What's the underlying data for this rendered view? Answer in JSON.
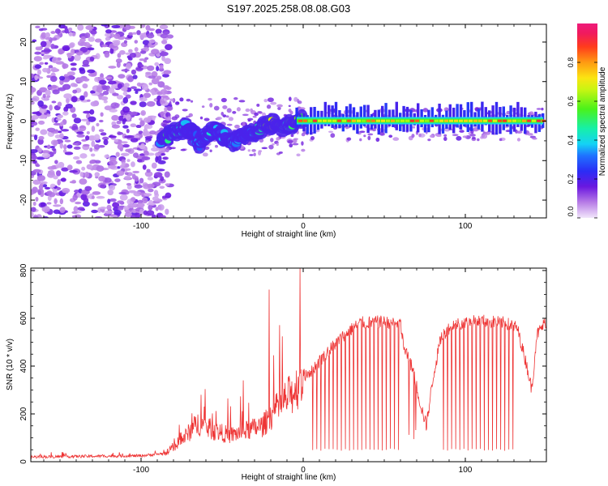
{
  "title": "S197.2025.258.08.08.G03",
  "chart_data": [
    {
      "type": "heatmap",
      "xlabel": "Height of straight line (km)",
      "ylabel": "Frequency (Hz)",
      "xlim": [
        -168,
        150
      ],
      "ylim": [
        -24.5,
        24.5
      ],
      "xticks": [
        -100,
        0,
        100
      ],
      "yticks": [
        -20,
        -10,
        0,
        10,
        20
      ],
      "colorbar": {
        "label": "Normalized spectral amplitude",
        "range": [
          0,
          1
        ],
        "ticks": [
          "0.0",
          "0.2",
          "0.4",
          "0.6",
          "0.8"
        ],
        "tick_values": [
          0.0,
          0.2,
          0.4,
          0.6,
          0.8
        ]
      },
      "noise_region_x": [
        -168,
        -88
      ],
      "ridge": [
        {
          "x": -88,
          "f": -5.5,
          "a": 0.35
        },
        {
          "x": -84,
          "f": -4.0,
          "a": 0.45
        },
        {
          "x": -80,
          "f": -3.0,
          "a": 0.4
        },
        {
          "x": -76,
          "f": -2.0,
          "a": 0.45
        },
        {
          "x": -72,
          "f": -1.5,
          "a": 0.3
        },
        {
          "x": -68,
          "f": -3.5,
          "a": 0.25
        },
        {
          "x": -64,
          "f": -5.5,
          "a": 0.3
        },
        {
          "x": -60,
          "f": -3.5,
          "a": 0.3
        },
        {
          "x": -56,
          "f": -2.0,
          "a": 0.35
        },
        {
          "x": -52,
          "f": -2.5,
          "a": 0.3
        },
        {
          "x": -48,
          "f": -4.0,
          "a": 0.3
        },
        {
          "x": -44,
          "f": -5.5,
          "a": 0.35
        },
        {
          "x": -40,
          "f": -5.0,
          "a": 0.3
        },
        {
          "x": -36,
          "f": -3.0,
          "a": 0.3
        },
        {
          "x": -32,
          "f": -2.5,
          "a": 0.3
        },
        {
          "x": -28,
          "f": -2.0,
          "a": 0.45
        },
        {
          "x": -24,
          "f": -1.5,
          "a": 0.5
        },
        {
          "x": -20,
          "f": -0.5,
          "a": 0.6
        },
        {
          "x": -16,
          "f": 0.2,
          "a": 0.65
        },
        {
          "x": -12,
          "f": -1.5,
          "a": 0.4
        },
        {
          "x": -8,
          "f": -1.0,
          "a": 0.45
        },
        {
          "x": -4,
          "f": 0.3,
          "a": 0.5
        },
        {
          "x": 0,
          "f": 0.0,
          "a": 0.55
        }
      ],
      "carrier_line": {
        "x_start": -4,
        "x_end": 148,
        "frequency": 0.0,
        "amplitude": 0.8
      }
    },
    {
      "type": "line",
      "xlabel": "Height of straight line (km)",
      "ylabel": "SNR (10 * v/v)",
      "xlim": [
        -168,
        150
      ],
      "ylim": [
        0,
        810
      ],
      "xticks": [
        -100,
        0,
        100
      ],
      "yticks": [
        0,
        200,
        400,
        600,
        800
      ],
      "series": [
        {
          "name": "SNR",
          "color": "#ee3333",
          "envelope": [
            {
              "x": -168,
              "v": 20
            },
            {
              "x": -100,
              "v": 25
            },
            {
              "x": -85,
              "v": 35
            },
            {
              "x": -75,
              "v": 90
            },
            {
              "x": -65,
              "v": 160
            },
            {
              "x": -55,
              "v": 130
            },
            {
              "x": -45,
              "v": 110
            },
            {
              "x": -35,
              "v": 130
            },
            {
              "x": -25,
              "v": 150
            },
            {
              "x": -15,
              "v": 230
            },
            {
              "x": -5,
              "v": 300
            },
            {
              "x": 0,
              "v": 360
            },
            {
              "x": 5,
              "v": 380
            },
            {
              "x": 15,
              "v": 460
            },
            {
              "x": 25,
              "v": 530
            },
            {
              "x": 35,
              "v": 580
            },
            {
              "x": 45,
              "v": 585
            },
            {
              "x": 60,
              "v": 580
            },
            {
              "x": 62,
              "v": 480
            },
            {
              "x": 68,
              "v": 380
            },
            {
              "x": 72,
              "v": 250
            },
            {
              "x": 76,
              "v": 150
            },
            {
              "x": 80,
              "v": 350
            },
            {
              "x": 85,
              "v": 520
            },
            {
              "x": 92,
              "v": 575
            },
            {
              "x": 110,
              "v": 590
            },
            {
              "x": 125,
              "v": 580
            },
            {
              "x": 132,
              "v": 560
            },
            {
              "x": 138,
              "v": 400
            },
            {
              "x": 141,
              "v": 300
            },
            {
              "x": 144,
              "v": 530
            },
            {
              "x": 150,
              "v": 590
            }
          ],
          "peaks": [
            {
              "x": -21,
              "v": 720
            },
            {
              "x": -2,
              "v": 810
            },
            {
              "x": -37,
              "v": 340
            },
            {
              "x": -63,
              "v": 280
            }
          ],
          "dips_region_1": [
            5,
            60
          ],
          "dips_region_2": [
            85,
            130
          ],
          "dip_level": 45
        }
      ]
    }
  ]
}
